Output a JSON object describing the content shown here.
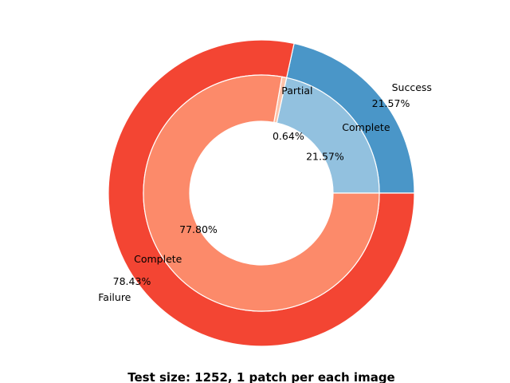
{
  "chart_data": {
    "type": "pie",
    "style": "nested-donut",
    "title": "Test size: 1252, 1 patch per each image",
    "start_angle_deg": 0,
    "direction": "counterclockwise",
    "outer_ring": {
      "labels": [
        "Success",
        "Failure"
      ],
      "values": [
        21.57,
        78.43
      ],
      "value_labels": [
        "21.57%",
        "78.43%"
      ],
      "colors": [
        "#4a96c8",
        "#f34533"
      ]
    },
    "inner_ring": {
      "labels": [
        "Complete",
        "Partial",
        "Complete"
      ],
      "values": [
        21.57,
        0.64,
        77.8
      ],
      "value_labels": [
        "21.57%",
        "0.64%",
        "77.80%"
      ],
      "colors": [
        "#92c1df",
        "#fcc2a9",
        "#fc8a6a"
      ]
    }
  }
}
